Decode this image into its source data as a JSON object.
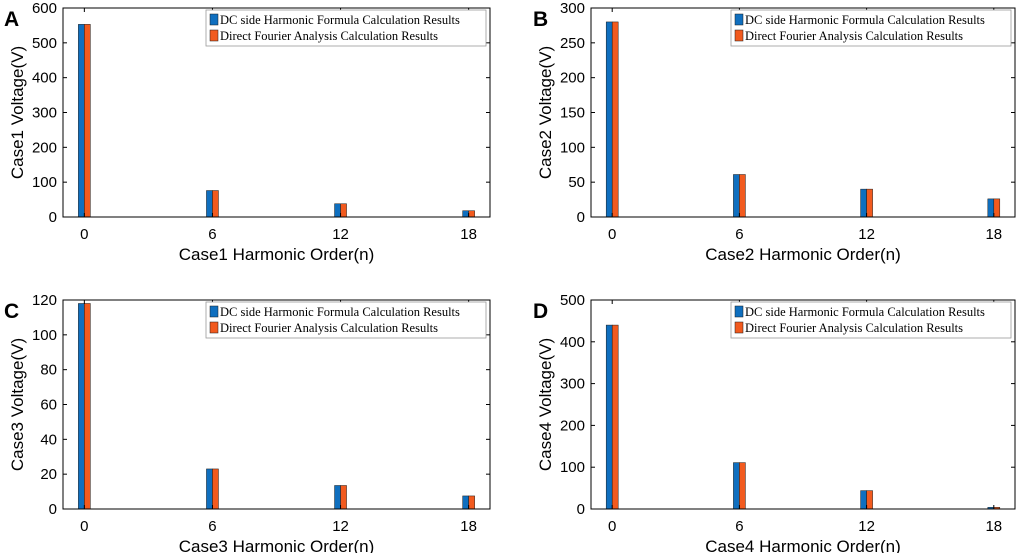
{
  "chart_data": [
    {
      "type": "bar",
      "panel_label": "A",
      "categories": [
        "0",
        "6",
        "12",
        "18"
      ],
      "xlabel": "Case1 Harmonic Order(n)",
      "ylabel": "Case1 Voltage(V)",
      "ylim": [
        0,
        600
      ],
      "yticks": [
        "0",
        "100",
        "200",
        "300",
        "400",
        "500",
        "600"
      ],
      "legend_position": "top-right",
      "series": [
        {
          "name": "DC side Harmonic Formula Calculation Results",
          "values": [
            553,
            76,
            38,
            18
          ]
        },
        {
          "name": "Direct Fourier Analysis Calculation Results",
          "values": [
            553,
            76,
            38,
            18
          ]
        }
      ]
    },
    {
      "type": "bar",
      "panel_label": "B",
      "categories": [
        "0",
        "6",
        "12",
        "18"
      ],
      "xlabel": "Case2 Harmonic Order(n)",
      "ylabel": "Case2 Voltage(V)",
      "ylim": [
        0,
        300
      ],
      "yticks": [
        "0",
        "50",
        "100",
        "150",
        "200",
        "250",
        "300"
      ],
      "legend_position": "top-right",
      "series": [
        {
          "name": "DC side Harmonic Formula Calculation Results",
          "values": [
            280,
            61,
            40,
            26
          ]
        },
        {
          "name": "Direct Fourier Analysis Calculation Results",
          "values": [
            280,
            61,
            40,
            26
          ]
        }
      ]
    },
    {
      "type": "bar",
      "panel_label": "C",
      "categories": [
        "0",
        "6",
        "12",
        "18"
      ],
      "xlabel": "Case3 Harmonic Order(n)",
      "ylabel": "Case3 Voltage(V)",
      "ylim": [
        0,
        120
      ],
      "yticks": [
        "0",
        "20",
        "40",
        "60",
        "80",
        "100",
        "120"
      ],
      "legend_position": "top-right",
      "series": [
        {
          "name": "DC side Harmonic Formula Calculation Results",
          "values": [
            118,
            23,
            13.5,
            7.5
          ]
        },
        {
          "name": "Direct Fourier Analysis Calculation Results",
          "values": [
            118,
            23,
            13.5,
            7.5
          ]
        }
      ]
    },
    {
      "type": "bar",
      "panel_label": "D",
      "categories": [
        "0",
        "6",
        "12",
        "18"
      ],
      "xlabel": "Case4 Harmonic Order(n)",
      "ylabel": "Case4 Voltage(V)",
      "ylim": [
        0,
        500
      ],
      "yticks": [
        "0",
        "100",
        "200",
        "300",
        "400",
        "500"
      ],
      "legend_position": "top-right",
      "series": [
        {
          "name": "DC side Harmonic Formula Calculation Results",
          "values": [
            440,
            111,
            44,
            4
          ]
        },
        {
          "name": "Direct Fourier Analysis Calculation Results",
          "values": [
            440,
            111,
            44,
            4
          ]
        }
      ]
    }
  ],
  "colors": {
    "series_1": "#0f6fbf",
    "series_2": "#f25a1e"
  }
}
